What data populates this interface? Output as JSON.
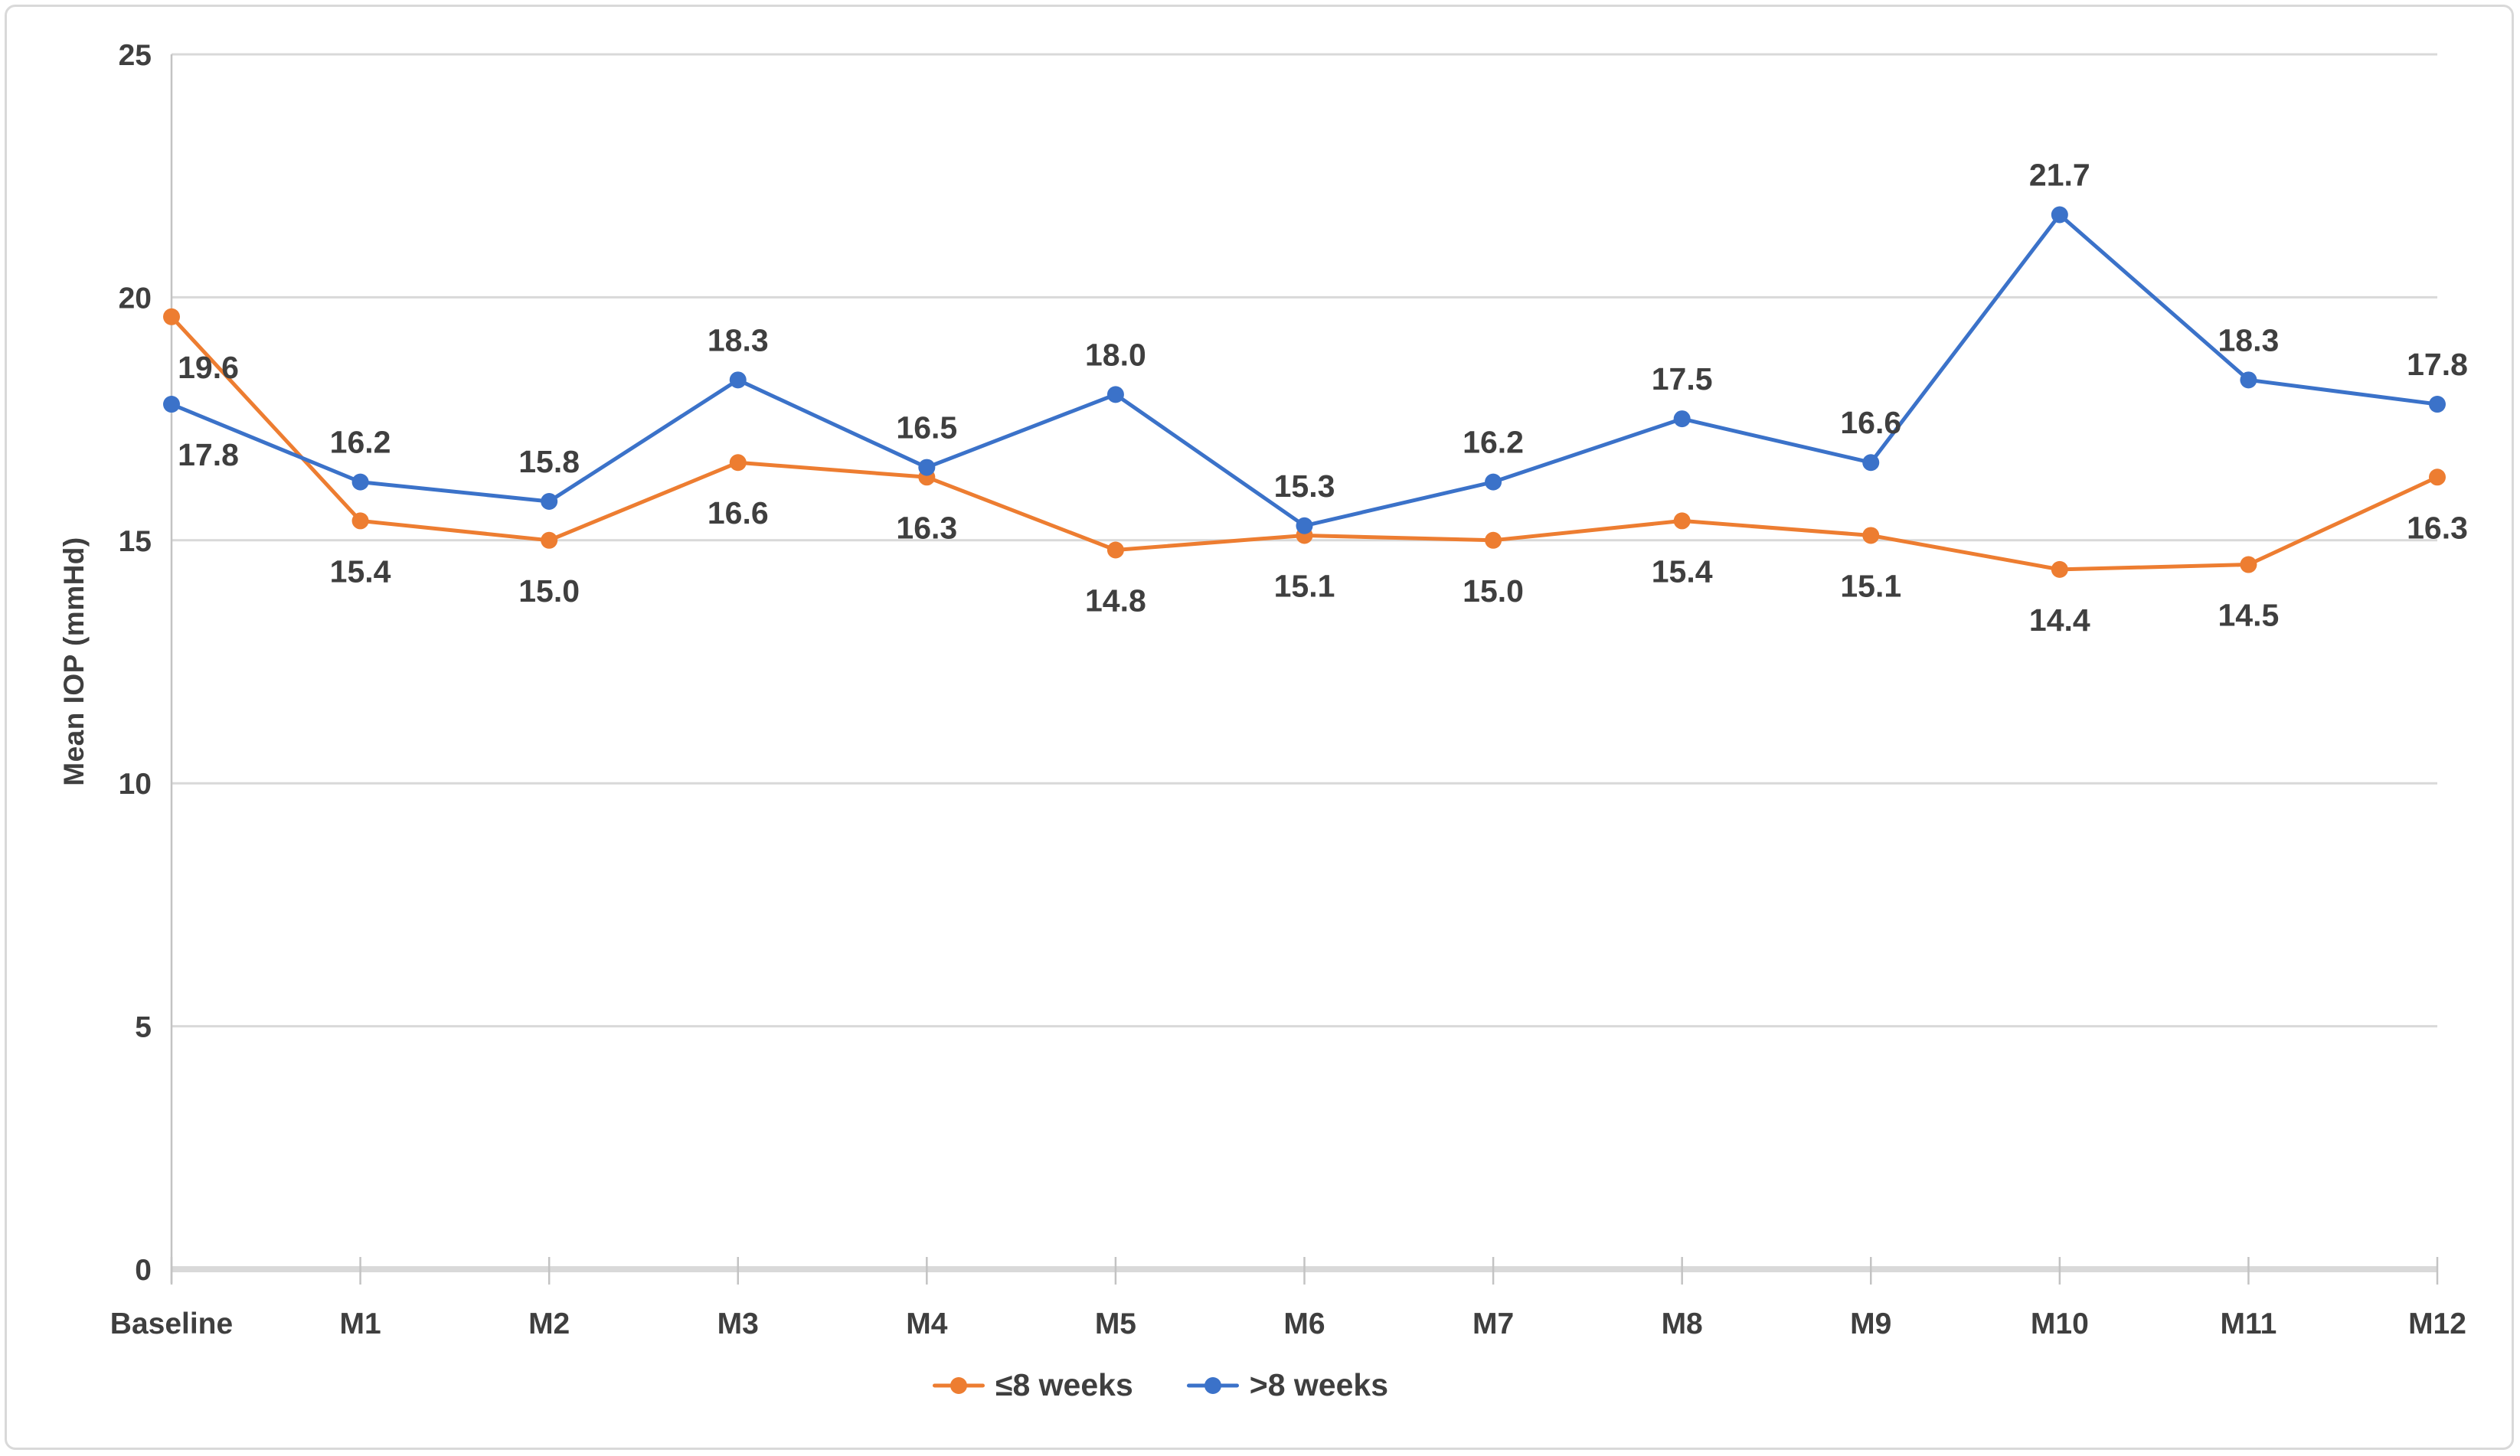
{
  "figure": {
    "background": "#ffffff",
    "border_color": "#d9d9d9"
  },
  "chart_data": {
    "type": "line",
    "title": "",
    "xlabel": "",
    "ylabel": "Mean IOP (mmHd)",
    "ylim": [
      0,
      25
    ],
    "yticks": [
      0,
      5,
      10,
      15,
      20,
      25
    ],
    "grid": "horizontal",
    "legend_position": "bottom-center",
    "categories": [
      "Baseline",
      "M1",
      "M2",
      "M3",
      "M4",
      "M5",
      "M6",
      "M7",
      "M8",
      "M9",
      "M10",
      "M11",
      "M12"
    ],
    "series": [
      {
        "name": "≤8 weeks",
        "color": "#ED7D31",
        "data_label_position": "below",
        "values": [
          19.6,
          15.4,
          15.0,
          16.6,
          16.3,
          14.8,
          15.1,
          15.0,
          15.4,
          15.1,
          14.4,
          14.5,
          16.3
        ]
      },
      {
        "name": ">8 weeks",
        "color": "#3B72C9",
        "data_label_position": "above",
        "values": [
          17.8,
          16.2,
          15.8,
          18.3,
          16.5,
          18.0,
          15.3,
          16.2,
          17.5,
          16.6,
          21.7,
          18.3,
          17.8
        ]
      }
    ],
    "colors": {
      "text": "#3f3f3f",
      "gridline": "#d9d9d9",
      "axis_line": "#c3c3c3",
      "zero_axis": "#d9d9d9"
    }
  }
}
